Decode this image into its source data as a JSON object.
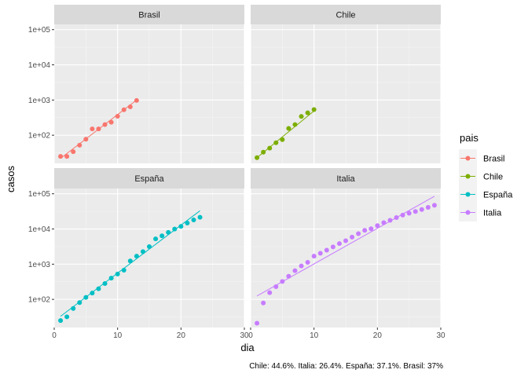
{
  "chart_data": {
    "type": "scatter",
    "facets": [
      "Brasil",
      "Chile",
      "España",
      "Italia"
    ],
    "xlabel": "dia",
    "ylabel": "casos",
    "xlim": [
      0,
      30
    ],
    "ylim_log10": [
      1.2,
      5.15
    ],
    "x_ticks": [
      0,
      10,
      20,
      30
    ],
    "y_ticks": [
      {
        "value": 100,
        "label": "1e+02"
      },
      {
        "value": 1000,
        "label": "1e+03"
      },
      {
        "value": 10000,
        "label": "1e+04"
      },
      {
        "value": 100000,
        "label": "1e+05"
      }
    ],
    "y_scale": "log10",
    "legend": {
      "title": "pais",
      "position": "right",
      "entries": [
        "Brasil",
        "Chile",
        "España",
        "Italia"
      ]
    },
    "caption": "Chile: 44.6%. Italia: 26.4%. España: 37.1%. Brasil: 37%",
    "series": [
      {
        "name": "Brasil",
        "color": "#F8766D",
        "x": [
          1,
          2,
          3,
          4,
          5,
          6,
          7,
          8,
          9,
          10,
          11,
          12,
          13
        ],
        "y": [
          25,
          25,
          34,
          52,
          77,
          151,
          151,
          200,
          234,
          346,
          529,
          640,
          970
        ],
        "fit": {
          "x": [
            1,
            13
          ],
          "y": [
            22,
            1000
          ]
        }
      },
      {
        "name": "Chile",
        "color": "#7CAE00",
        "x": [
          1,
          2,
          3,
          4,
          5,
          6,
          7,
          8,
          9,
          10
        ],
        "y": [
          23,
          33,
          43,
          61,
          75,
          156,
          201,
          342,
          434,
          537
        ],
        "fit": {
          "x": [
            1,
            10
          ],
          "y": [
            23,
            490
          ]
        }
      },
      {
        "name": "España",
        "color": "#00BFC4",
        "x": [
          1,
          2,
          3,
          4,
          5,
          6,
          7,
          8,
          9,
          10,
          11,
          12,
          13,
          14,
          15,
          16,
          17,
          18,
          19,
          20,
          21,
          22,
          23
        ],
        "y": [
          25,
          32,
          55,
          81,
          114,
          151,
          200,
          282,
          401,
          525,
          674,
          1231,
          1695,
          2277,
          3146,
          5232,
          6391,
          7988,
          9942,
          11826,
          14769,
          18077,
          21571
        ],
        "fit": {
          "x": [
            1,
            23
          ],
          "y": [
            33,
            33000
          ]
        }
      },
      {
        "name": "Italia",
        "color": "#C77CFF",
        "x": [
          1,
          2,
          3,
          4,
          5,
          6,
          7,
          8,
          9,
          10,
          11,
          12,
          13,
          14,
          15,
          16,
          17,
          18,
          19,
          20,
          21,
          22,
          23,
          24,
          25,
          26,
          27,
          28,
          29
        ],
        "y": [
          21,
          79,
          155,
          229,
          322,
          453,
          655,
          888,
          1128,
          1694,
          2036,
          2502,
          3089,
          3858,
          4636,
          5883,
          7375,
          9172,
          10149,
          12462,
          15113,
          17660,
          21157,
          24747,
          27980,
          31506,
          35713,
          41035,
          47021
        ],
        "fit": {
          "x": [
            1,
            29
          ],
          "y": [
            125,
            85000
          ]
        }
      }
    ]
  }
}
